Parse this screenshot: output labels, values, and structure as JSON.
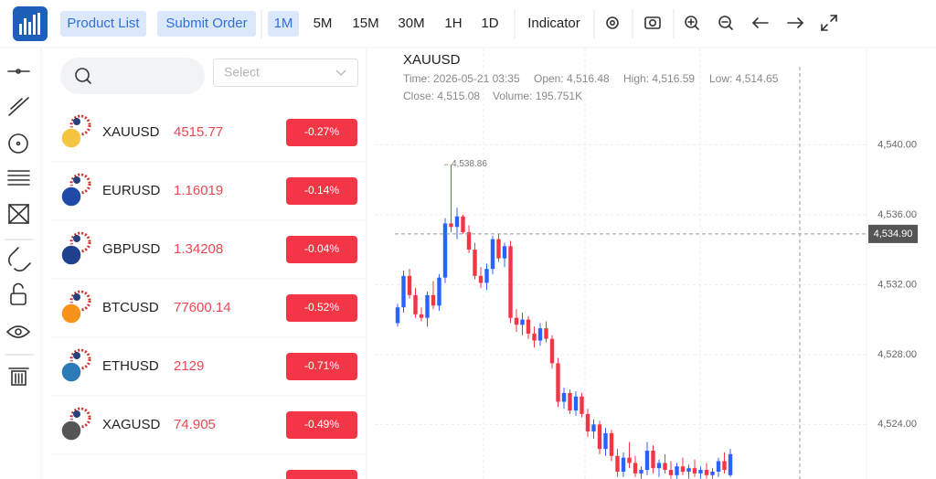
{
  "toolbar": {
    "buttons": [
      "Product List",
      "Submit Order"
    ],
    "intervals": [
      "1M",
      "5M",
      "15M",
      "30M",
      "1H",
      "1D"
    ],
    "indicator": "Indicator"
  },
  "watchlist": {
    "search_placeholder": "",
    "select": "Select",
    "rows": [
      {
        "symbol": "XAUUSD",
        "price": "4515.77",
        "change": "-0.27%"
      },
      {
        "symbol": "EURUSD",
        "price": "1.16019",
        "change": "-0.14%"
      },
      {
        "symbol": "GBPUSD",
        "price": "1.34208",
        "change": "-0.04%"
      },
      {
        "symbol": "BTCUSD",
        "price": "77600.14",
        "change": "-0.52%"
      },
      {
        "symbol": "ETHUSD",
        "price": "2129",
        "change": "-0.71%"
      },
      {
        "symbol": "XAGUSD",
        "price": "74.905",
        "change": "-0.49%"
      }
    ]
  },
  "chart_data": {
    "type": "candlestick",
    "title": "XAUUSD",
    "info": [
      "Time: 2026-05-21 03:35",
      "Open: 4,516.48",
      "High: 4,516.59",
      "Low: 4,514.65",
      "Close: 4,515.08",
      "Volume: 195.751K"
    ],
    "up_color": "#2962ff",
    "down_color": "#f23645",
    "ylim": [
      4520.88,
      4545.51
    ],
    "yticks": [
      {
        "value": 4524,
        "label": "4,524.00"
      },
      {
        "value": 4528,
        "label": "4,528.00"
      },
      {
        "value": 4532,
        "label": "4,532.00"
      },
      {
        "value": 4536,
        "label": "4,536.00"
      },
      {
        "value": 4540,
        "label": "4,540.00"
      }
    ],
    "grid": true,
    "annotation": {
      "value": 4538.86,
      "label": "4,538.86"
    },
    "crosshair": {
      "value": 4534.9,
      "label": "4,534.90"
    },
    "candles": [
      [
        4529.8,
        4530.9,
        4529.6,
        4530.7
      ],
      [
        4530.7,
        4532.8,
        4530.4,
        4532.5
      ],
      [
        4532.5,
        4532.9,
        4531.2,
        4531.4
      ],
      [
        4531.4,
        4531.8,
        4530.1,
        4530.3
      ],
      [
        4530.3,
        4530.7,
        4529.9,
        4530.1
      ],
      [
        4530.1,
        4531.6,
        4529.6,
        4531.4
      ],
      [
        4531.4,
        4532.2,
        4530.6,
        4530.8
      ],
      [
        4530.8,
        4532.6,
        4530.5,
        4532.4
      ],
      [
        4532.4,
        4535.8,
        4532.1,
        4535.5
      ],
      [
        4535.5,
        4538.86,
        4535.0,
        4535.3
      ],
      [
        4535.3,
        4536.4,
        4534.6,
        4535.9
      ],
      [
        4535.9,
        4536.0,
        4534.9,
        4535.0
      ],
      [
        4535.0,
        4535.4,
        4533.8,
        4534.0
      ],
      [
        4534.0,
        4534.4,
        4532.3,
        4532.5
      ],
      [
        4532.5,
        4533.0,
        4531.8,
        4532.1
      ],
      [
        4532.1,
        4533.2,
        4531.7,
        4532.9
      ],
      [
        4532.9,
        4534.8,
        4532.6,
        4534.6
      ],
      [
        4534.6,
        4534.9,
        4533.3,
        4533.5
      ],
      [
        4533.5,
        4534.4,
        4533.0,
        4534.2
      ],
      [
        4534.2,
        4534.5,
        4529.8,
        4530.1
      ],
      [
        4530.1,
        4530.6,
        4529.3,
        4529.7
      ],
      [
        4529.7,
        4530.4,
        4529.1,
        4530.0
      ],
      [
        4530.0,
        4530.2,
        4528.9,
        4529.2
      ],
      [
        4529.2,
        4529.6,
        4528.4,
        4528.8
      ],
      [
        4528.8,
        4529.8,
        4528.5,
        4529.5
      ],
      [
        4529.5,
        4529.9,
        4528.7,
        4528.9
      ],
      [
        4528.9,
        4529.1,
        4527.2,
        4527.5
      ],
      [
        4527.5,
        4527.8,
        4525.0,
        4525.3
      ],
      [
        4525.3,
        4526.1,
        4524.9,
        4525.8
      ],
      [
        4525.8,
        4526.0,
        4524.6,
        4524.8
      ],
      [
        4524.8,
        4525.9,
        4524.5,
        4525.6
      ],
      [
        4525.6,
        4525.8,
        4524.4,
        4524.6
      ],
      [
        4524.6,
        4524.9,
        4523.3,
        4523.6
      ],
      [
        4523.6,
        4524.3,
        4523.2,
        4524.0
      ],
      [
        4524.0,
        4524.2,
        4522.3,
        4522.6
      ],
      [
        4522.6,
        4523.8,
        4522.2,
        4523.5
      ],
      [
        4523.5,
        4523.7,
        4521.9,
        4522.2
      ],
      [
        4522.2,
        4522.6,
        4521.0,
        4521.3
      ],
      [
        4521.3,
        4522.4,
        4521.0,
        4522.1
      ],
      [
        4522.1,
        4523.0,
        4521.5,
        4521.8
      ],
      [
        4521.8,
        4522.2,
        4521.0,
        4521.2
      ],
      [
        4521.2,
        4521.6,
        4520.9,
        4521.4
      ],
      [
        4521.4,
        4523.0,
        4521.1,
        4522.5
      ],
      [
        4522.5,
        4522.8,
        4521.2,
        4521.5
      ],
      [
        4521.5,
        4522.0,
        4521.0,
        4521.8
      ],
      [
        4521.8,
        4522.3,
        4521.2,
        4521.4
      ],
      [
        4521.4,
        4521.9,
        4520.9,
        4521.1
      ],
      [
        4521.1,
        4521.8,
        4520.9,
        4521.6
      ],
      [
        4521.6,
        4522.1,
        4521.1,
        4521.3
      ],
      [
        4521.3,
        4521.7,
        4520.9,
        4521.5
      ],
      [
        4521.5,
        4522.0,
        4521.0,
        4521.2
      ],
      [
        4521.2,
        4521.6,
        4520.9,
        4521.4
      ],
      [
        4521.4,
        4521.8,
        4520.9,
        4521.1
      ],
      [
        4521.1,
        4521.5,
        4520.9,
        4521.3
      ],
      [
        4521.3,
        4522.1,
        4521.0,
        4521.9
      ],
      [
        4521.9,
        4522.4,
        4521.2,
        4521.4
      ],
      [
        4521.1,
        4522.6,
        4521.0,
        4522.3
      ]
    ]
  }
}
